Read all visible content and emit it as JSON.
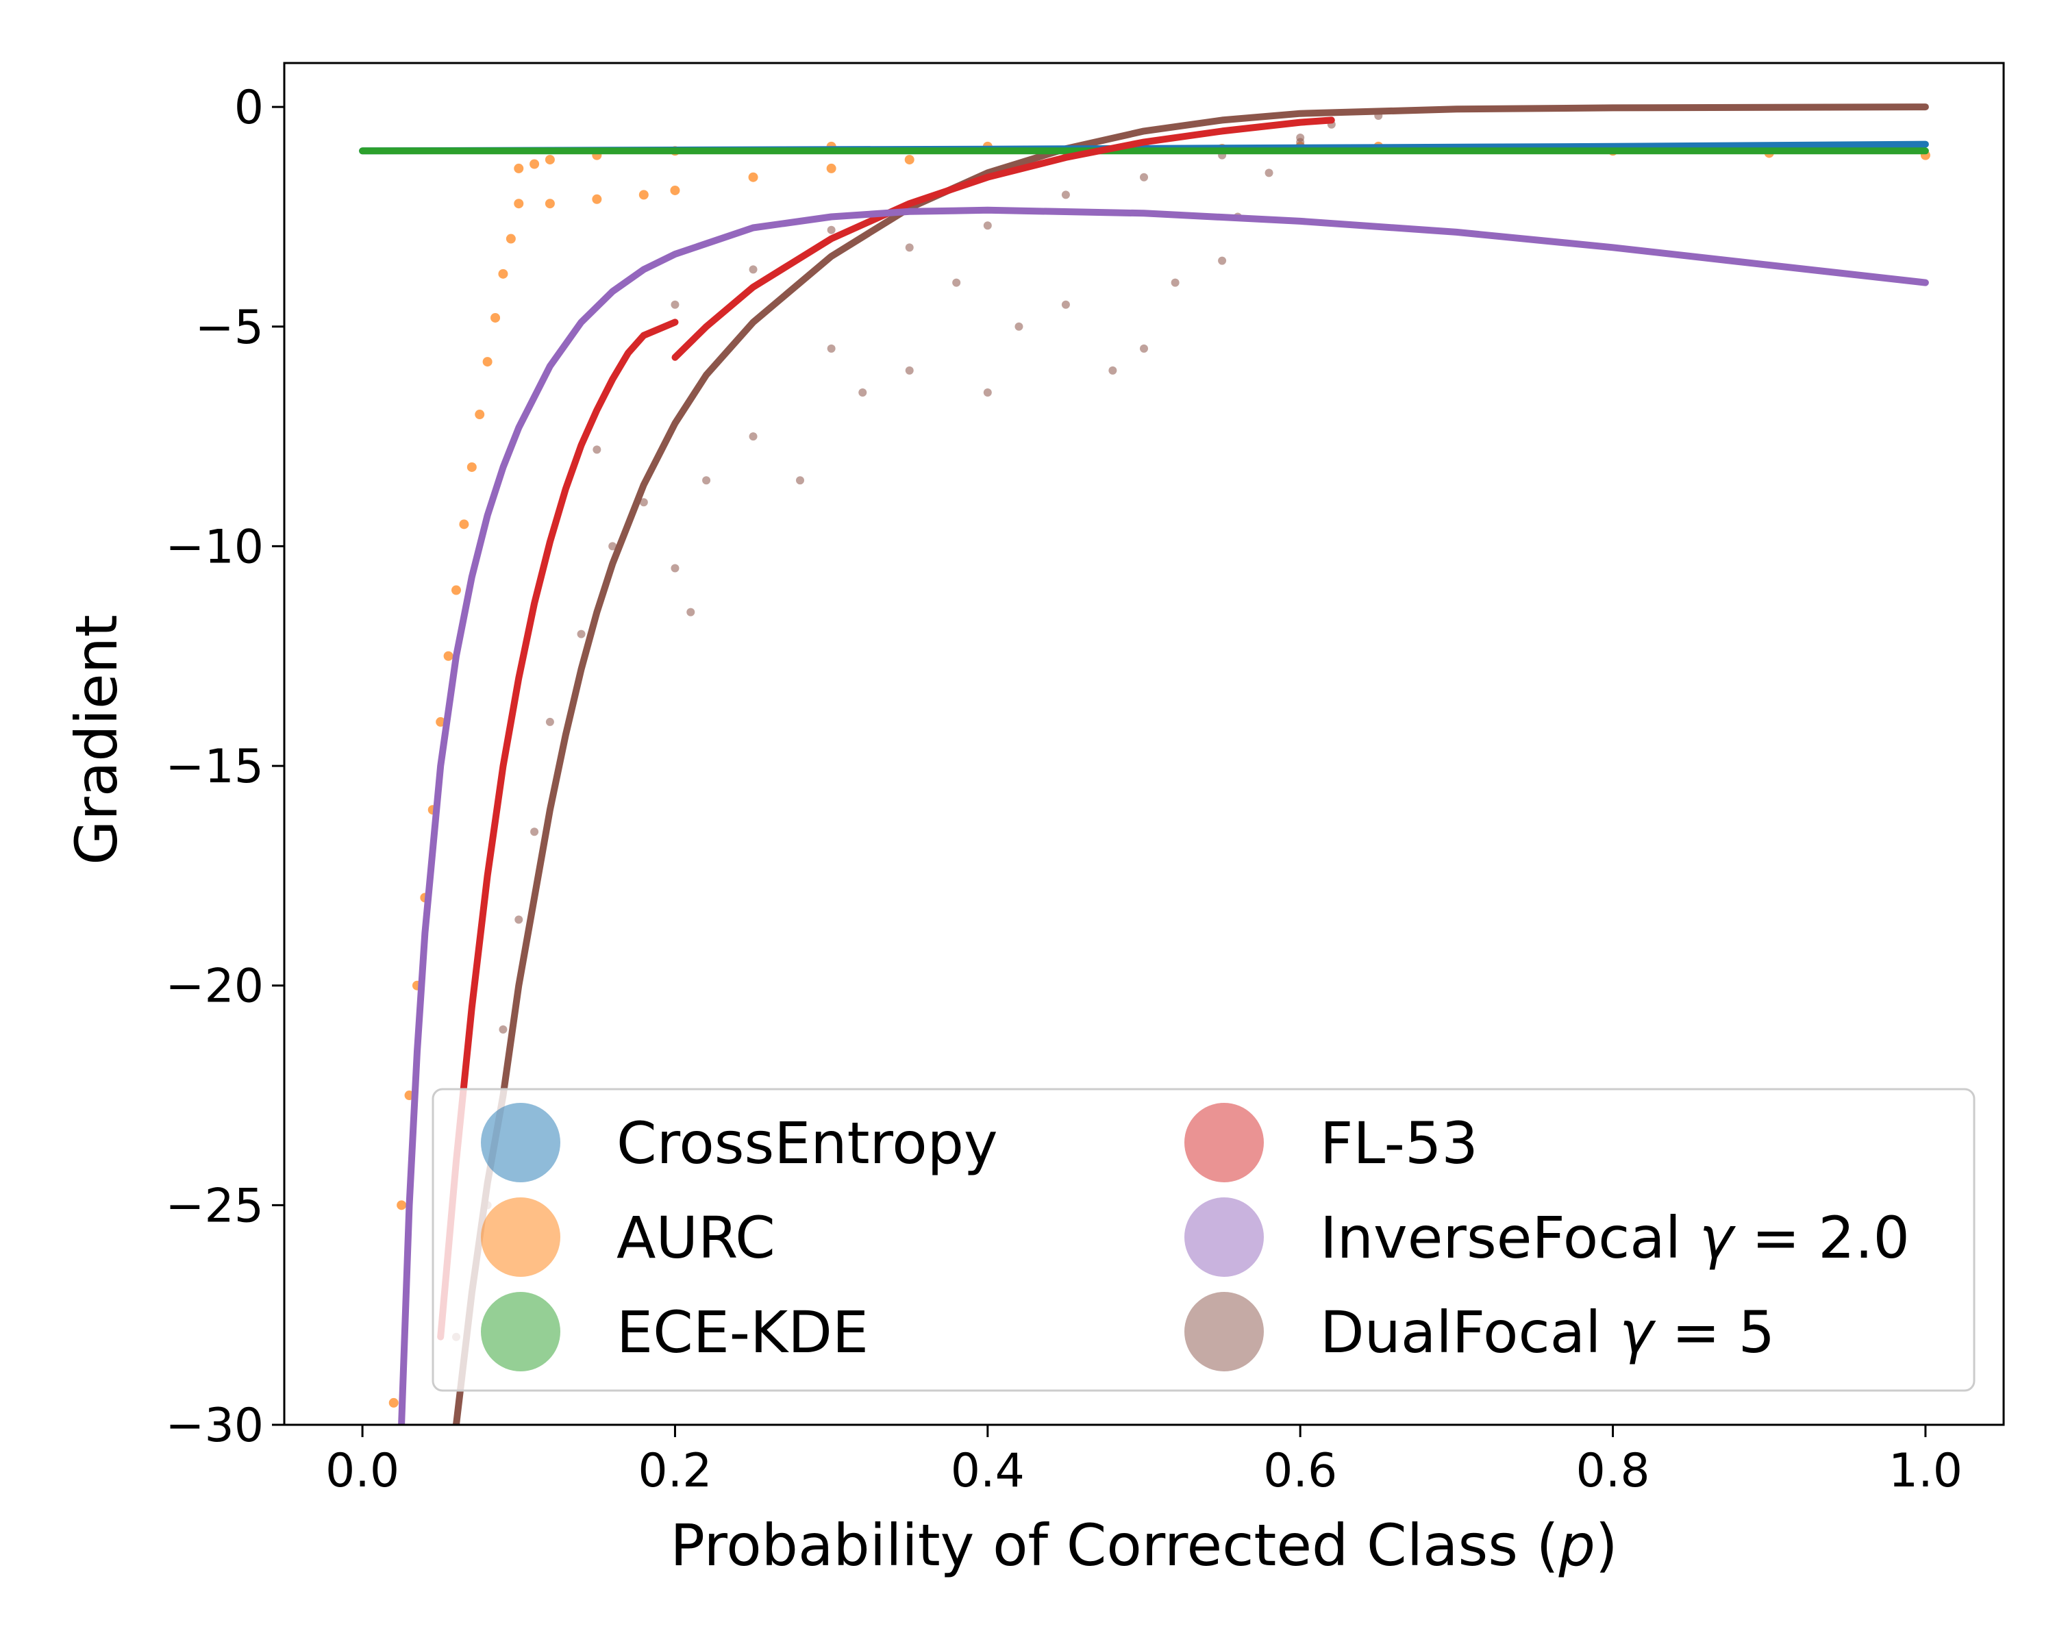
{
  "chart_data": {
    "type": "scatter",
    "title": "",
    "xlabel": "Probability of Corrected Class (p)",
    "ylabel": "Gradient",
    "xlim": [
      -0.05,
      1.05
    ],
    "ylim": [
      -30,
      1
    ],
    "x_ticks": [
      0.0,
      0.2,
      0.4,
      0.6,
      0.8,
      1.0
    ],
    "x_tick_labels": [
      "0.0",
      "0.2",
      "0.4",
      "0.6",
      "0.8",
      "1.0"
    ],
    "y_ticks": [
      0,
      -5,
      -10,
      -15,
      -20,
      -25,
      -30
    ],
    "y_tick_labels": [
      "0",
      "−5",
      "−10",
      "−15",
      "−20",
      "−25",
      "−30"
    ],
    "grid": false,
    "legend": {
      "placement": "lower-right",
      "columns": 2
    },
    "series": [
      {
        "name": "CrossEntropy",
        "legend_label": "CrossEntropy",
        "color": "#1f77b4",
        "kind": "line",
        "points": [
          [
            0.0,
            -1.0
          ],
          [
            0.2,
            -0.98
          ],
          [
            0.4,
            -0.96
          ],
          [
            0.6,
            -0.93
          ],
          [
            0.8,
            -0.9
          ],
          [
            1.0,
            -0.85
          ]
        ]
      },
      {
        "name": "AURC",
        "legend_label": "AURC",
        "color": "#ff7f0e",
        "kind": "scatter",
        "points": [
          [
            0.02,
            -29.5
          ],
          [
            0.025,
            -25.0
          ],
          [
            0.03,
            -22.5
          ],
          [
            0.035,
            -20.0
          ],
          [
            0.04,
            -18.0
          ],
          [
            0.045,
            -16.0
          ],
          [
            0.05,
            -14.0
          ],
          [
            0.055,
            -12.5
          ],
          [
            0.06,
            -11.0
          ],
          [
            0.065,
            -9.5
          ],
          [
            0.07,
            -8.2
          ],
          [
            0.075,
            -7.0
          ],
          [
            0.08,
            -5.8
          ],
          [
            0.085,
            -4.8
          ],
          [
            0.09,
            -3.8
          ],
          [
            0.095,
            -3.0
          ],
          [
            0.1,
            -2.2
          ],
          [
            0.1,
            -1.4
          ],
          [
            0.11,
            -1.3
          ],
          [
            0.12,
            -1.2
          ],
          [
            0.15,
            -1.1
          ],
          [
            0.2,
            -1.0
          ],
          [
            0.3,
            -0.9
          ],
          [
            0.4,
            -0.9
          ],
          [
            0.5,
            -0.85
          ],
          [
            0.6,
            -0.9
          ],
          [
            0.7,
            -0.95
          ],
          [
            0.8,
            -1.0
          ],
          [
            0.9,
            -1.05
          ],
          [
            1.0,
            -1.1
          ],
          [
            0.12,
            -2.2
          ],
          [
            0.15,
            -2.1
          ],
          [
            0.18,
            -2.0
          ],
          [
            0.2,
            -1.9
          ],
          [
            0.25,
            -1.6
          ],
          [
            0.3,
            -1.4
          ],
          [
            0.35,
            -1.2
          ],
          [
            0.45,
            -1.0
          ],
          [
            0.55,
            -0.95
          ],
          [
            0.65,
            -0.9
          ]
        ]
      },
      {
        "name": "ECE-KDE",
        "legend_label": "ECE-KDE",
        "color": "#2ca02c",
        "kind": "line",
        "points": [
          [
            0.0,
            -1.0
          ],
          [
            0.25,
            -1.0
          ],
          [
            0.5,
            -1.0
          ],
          [
            0.75,
            -1.0
          ],
          [
            1.0,
            -1.0
          ]
        ]
      },
      {
        "name": "FL-53",
        "legend_label": "FL-53",
        "color": "#d62728",
        "kind": "line",
        "segments": [
          [
            [
              0.05,
              -28.0
            ],
            [
              0.055,
              -26.0
            ],
            [
              0.06,
              -24.0
            ],
            [
              0.07,
              -20.5
            ],
            [
              0.08,
              -17.5
            ],
            [
              0.09,
              -15.0
            ],
            [
              0.1,
              -13.0
            ],
            [
              0.11,
              -11.3
            ],
            [
              0.12,
              -9.9
            ],
            [
              0.13,
              -8.7
            ],
            [
              0.14,
              -7.7
            ],
            [
              0.15,
              -6.9
            ],
            [
              0.16,
              -6.2
            ],
            [
              0.17,
              -5.6
            ],
            [
              0.18,
              -5.2
            ],
            [
              0.2,
              -4.9
            ]
          ],
          [
            [
              0.2,
              -5.7
            ],
            [
              0.22,
              -5.0
            ],
            [
              0.25,
              -4.1
            ],
            [
              0.3,
              -3.0
            ],
            [
              0.35,
              -2.2
            ],
            [
              0.4,
              -1.6
            ],
            [
              0.45,
              -1.15
            ],
            [
              0.5,
              -0.8
            ],
            [
              0.55,
              -0.55
            ],
            [
              0.6,
              -0.35
            ],
            [
              0.62,
              -0.3
            ]
          ]
        ]
      },
      {
        "name": "InverseFocal γ = 2.0",
        "legend_label": "InverseFocal",
        "legend_math": "γ = 2.0",
        "color": "#9467bd",
        "kind": "line",
        "points": [
          [
            0.025,
            -30.0
          ],
          [
            0.03,
            -25.0
          ],
          [
            0.035,
            -21.5
          ],
          [
            0.04,
            -18.8
          ],
          [
            0.05,
            -15.0
          ],
          [
            0.06,
            -12.5
          ],
          [
            0.07,
            -10.7
          ],
          [
            0.08,
            -9.3
          ],
          [
            0.09,
            -8.2
          ],
          [
            0.1,
            -7.3
          ],
          [
            0.12,
            -5.9
          ],
          [
            0.14,
            -4.9
          ],
          [
            0.16,
            -4.2
          ],
          [
            0.18,
            -3.7
          ],
          [
            0.2,
            -3.35
          ],
          [
            0.25,
            -2.75
          ],
          [
            0.3,
            -2.5
          ],
          [
            0.35,
            -2.38
          ],
          [
            0.4,
            -2.35
          ],
          [
            0.5,
            -2.42
          ],
          [
            0.6,
            -2.6
          ],
          [
            0.7,
            -2.85
          ],
          [
            0.8,
            -3.2
          ],
          [
            0.9,
            -3.6
          ],
          [
            1.0,
            -4.0
          ]
        ]
      },
      {
        "name": "DualFocal γ = 5",
        "legend_label": "DualFocal",
        "legend_math": "γ = 5",
        "color": "#8c564b",
        "kind": "line",
        "points": [
          [
            0.06,
            -30.0
          ],
          [
            0.07,
            -27.0
          ],
          [
            0.08,
            -24.5
          ],
          [
            0.09,
            -22.5
          ],
          [
            0.1,
            -20.0
          ],
          [
            0.11,
            -18.0
          ],
          [
            0.12,
            -16.0
          ],
          [
            0.13,
            -14.3
          ],
          [
            0.14,
            -12.8
          ],
          [
            0.15,
            -11.5
          ],
          [
            0.16,
            -10.4
          ],
          [
            0.18,
            -8.6
          ],
          [
            0.2,
            -7.2
          ],
          [
            0.22,
            -6.1
          ],
          [
            0.25,
            -4.9
          ],
          [
            0.3,
            -3.4
          ],
          [
            0.35,
            -2.3
          ],
          [
            0.4,
            -1.5
          ],
          [
            0.45,
            -0.95
          ],
          [
            0.5,
            -0.55
          ],
          [
            0.55,
            -0.3
          ],
          [
            0.6,
            -0.15
          ],
          [
            0.7,
            -0.05
          ],
          [
            0.8,
            -0.02
          ],
          [
            0.9,
            -0.01
          ],
          [
            1.0,
            0.0
          ]
        ],
        "scatter_cloud": [
          [
            0.06,
            -28.0
          ],
          [
            0.08,
            -25.0
          ],
          [
            0.09,
            -21.0
          ],
          [
            0.1,
            -18.5
          ],
          [
            0.11,
            -16.5
          ],
          [
            0.12,
            -14.0
          ],
          [
            0.14,
            -12.0
          ],
          [
            0.16,
            -10.0
          ],
          [
            0.18,
            -9.0
          ],
          [
            0.2,
            -10.5
          ],
          [
            0.21,
            -11.5
          ],
          [
            0.22,
            -8.5
          ],
          [
            0.25,
            -7.5
          ],
          [
            0.28,
            -8.5
          ],
          [
            0.3,
            -5.5
          ],
          [
            0.32,
            -6.5
          ],
          [
            0.35,
            -6.0
          ],
          [
            0.38,
            -4.0
          ],
          [
            0.4,
            -6.5
          ],
          [
            0.42,
            -5.0
          ],
          [
            0.45,
            -4.5
          ],
          [
            0.48,
            -6.0
          ],
          [
            0.5,
            -5.5
          ],
          [
            0.52,
            -4.0
          ],
          [
            0.55,
            -3.5
          ],
          [
            0.56,
            -2.5
          ],
          [
            0.58,
            -1.5
          ],
          [
            0.6,
            -0.8
          ],
          [
            0.62,
            -0.4
          ],
          [
            0.65,
            -0.2
          ],
          [
            0.3,
            -2.8
          ],
          [
            0.35,
            -3.2
          ],
          [
            0.4,
            -2.7
          ],
          [
            0.45,
            -2.0
          ],
          [
            0.5,
            -1.6
          ],
          [
            0.55,
            -1.1
          ],
          [
            0.6,
            -0.7
          ],
          [
            0.2,
            -4.5
          ],
          [
            0.25,
            -3.7
          ],
          [
            0.15,
            -7.8
          ]
        ]
      }
    ]
  }
}
